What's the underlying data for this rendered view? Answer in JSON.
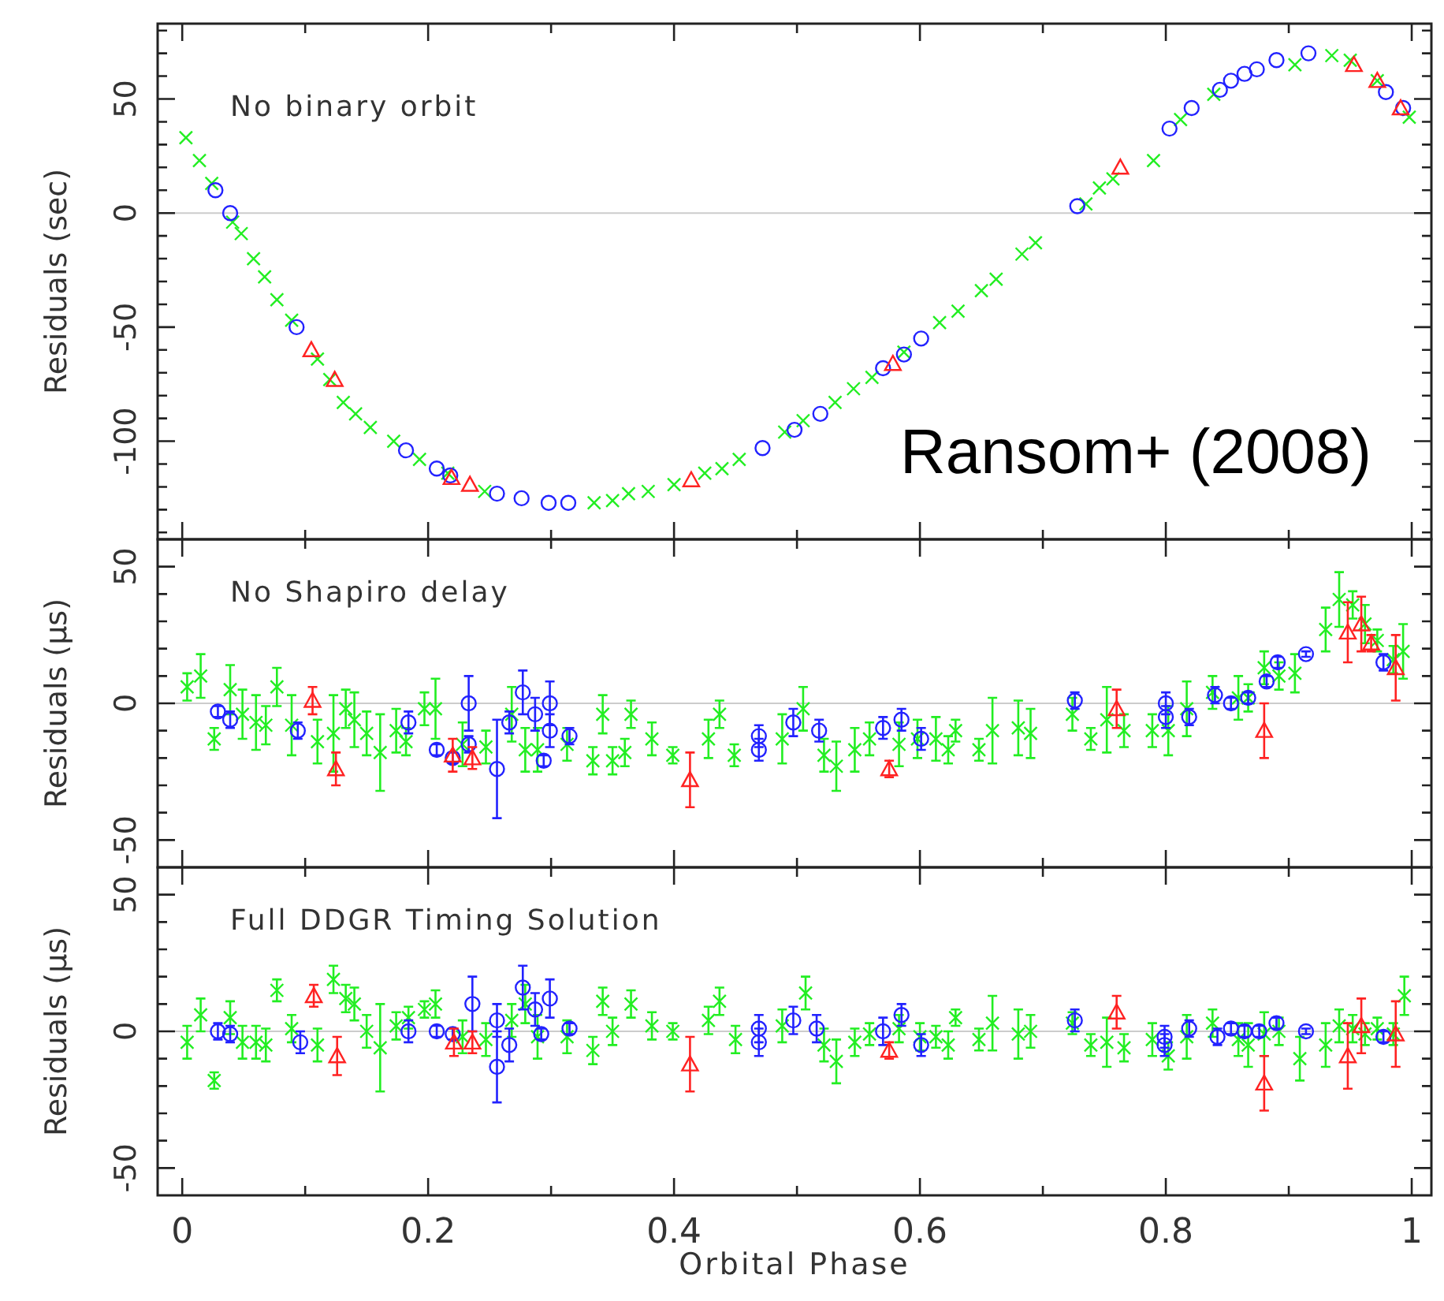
{
  "chart_data": [
    {
      "type": "scatter",
      "title": "No binary orbit",
      "ylabel": "Residuals (sec)",
      "annotations": [
        "Ransom+ (2008)"
      ],
      "tick_labels": "y",
      "xlim": [
        -0.02,
        1.016
      ],
      "ylim": [
        -143,
        83
      ],
      "xticks": [
        0,
        {
          "value": 0.1,
          "label": null
        },
        0.2,
        {
          "value": 0.3,
          "label": null
        },
        0.4,
        {
          "value": 0.5,
          "label": null
        },
        0.6,
        {
          "value": 0.7,
          "label": null
        },
        0.8,
        {
          "value": 0.9,
          "label": null
        },
        1
      ],
      "yticks": [
        {
          "value": -140,
          "label": null
        },
        {
          "value": -130,
          "label": null
        },
        {
          "value": -120,
          "label": null
        },
        {
          "value": -110,
          "label": null
        },
        -100,
        {
          "value": -90,
          "label": null
        },
        {
          "value": -80,
          "label": null
        },
        {
          "value": -70,
          "label": null
        },
        {
          "value": -60,
          "label": null
        },
        -50,
        {
          "value": -40,
          "label": null
        },
        {
          "value": -30,
          "label": null
        },
        {
          "value": -20,
          "label": null
        },
        {
          "value": -10,
          "label": null
        },
        0,
        {
          "value": 10,
          "label": null
        },
        {
          "value": 20,
          "label": null
        },
        {
          "value": 30,
          "label": null
        },
        {
          "value": 40,
          "label": null
        },
        50,
        {
          "value": 60,
          "label": null
        },
        {
          "value": 70,
          "label": null
        },
        {
          "value": 80,
          "label": null
        }
      ],
      "ref_lines": [
        {
          "axis": "y",
          "value": 0,
          "color": "#cccccc"
        }
      ],
      "series": [
        {
          "color": "#22ee22",
          "marker": "cross",
          "x": [
            0.003,
            0.014,
            0.024,
            0.041,
            0.048,
            0.058,
            0.067,
            0.077,
            0.089,
            0.11,
            0.12,
            0.131,
            0.141,
            0.153,
            0.172,
            0.193,
            0.216,
            0.246,
            0.335,
            0.35,
            0.363,
            0.379,
            0.4,
            0.425,
            0.439,
            0.453,
            0.49,
            0.505,
            0.531,
            0.546,
            0.561,
            0.587,
            0.616,
            0.631,
            0.65,
            0.662,
            0.683,
            0.694,
            0.735,
            0.746,
            0.757,
            0.79,
            0.812,
            0.839,
            0.905,
            0.935,
            0.95,
            0.972,
            0.998
          ],
          "values": [
            33,
            23,
            13,
            -4,
            -9,
            -20,
            -28,
            -38,
            -47,
            -64,
            -73,
            -83,
            -88,
            -94,
            -100,
            -108,
            -114,
            -122,
            -127,
            -126,
            -123,
            -122,
            -119,
            -114,
            -112,
            -108,
            -96,
            -91,
            -83,
            -77,
            -72,
            -61,
            -48,
            -43,
            -34,
            -29,
            -18,
            -13,
            4,
            11,
            15,
            23,
            41,
            52,
            65,
            69,
            67,
            58,
            42
          ]
        },
        {
          "color": "#2222ff",
          "marker": "circle",
          "x": [
            0.027,
            0.039,
            0.093,
            0.182,
            0.207,
            0.218,
            0.256,
            0.276,
            0.298,
            0.314,
            0.472,
            0.498,
            0.519,
            0.57,
            0.587,
            0.601,
            0.728,
            0.803,
            0.821,
            0.844,
            0.853,
            0.864,
            0.874,
            0.89,
            0.916,
            0.979,
            0.993
          ],
          "values": [
            10,
            0,
            -50,
            -104,
            -112,
            -115,
            -123,
            -125,
            -127,
            -127,
            -103,
            -95,
            -88,
            -68,
            -62,
            -55,
            3,
            37,
            46,
            54,
            58,
            61,
            63,
            67,
            70,
            53,
            46
          ]
        },
        {
          "color": "#ff2222",
          "marker": "triangle",
          "x": [
            0.105,
            0.124,
            0.219,
            0.234,
            0.414,
            0.578,
            0.763,
            0.953,
            0.972,
            0.991
          ],
          "values": [
            -60,
            -73,
            -116,
            -119,
            -117,
            -66,
            20,
            65,
            58,
            46
          ]
        }
      ]
    },
    {
      "type": "scatter",
      "title": "No Shapiro delay",
      "ylabel": "Residuals (μs)",
      "tick_labels": "y",
      "xlim": [
        -0.02,
        1.016
      ],
      "ylim": [
        -60,
        60
      ],
      "xticks": [
        0,
        {
          "value": 0.1,
          "label": null
        },
        0.2,
        {
          "value": 0.3,
          "label": null
        },
        0.4,
        {
          "value": 0.5,
          "label": null
        },
        0.6,
        {
          "value": 0.7,
          "label": null
        },
        0.8,
        {
          "value": 0.9,
          "label": null
        },
        1
      ],
      "yticks": [
        -50,
        {
          "value": -40,
          "label": null
        },
        {
          "value": -30,
          "label": null
        },
        {
          "value": -20,
          "label": null
        },
        {
          "value": -10,
          "label": null
        },
        0,
        {
          "value": 10,
          "label": null
        },
        {
          "value": 20,
          "label": null
        },
        {
          "value": 30,
          "label": null
        },
        {
          "value": 40,
          "label": null
        },
        50
      ],
      "ref_lines": [
        {
          "axis": "y",
          "value": 0,
          "color": "#cccccc"
        }
      ],
      "series": [
        {
          "color": "#22ee22",
          "marker": "cross",
          "x": [
            0.004,
            0.015,
            0.026,
            0.039,
            0.049,
            0.06,
            0.068,
            0.077,
            0.089,
            0.11,
            0.123,
            0.133,
            0.14,
            0.15,
            0.161,
            0.174,
            0.182,
            0.197,
            0.206,
            0.228,
            0.247,
            0.268,
            0.279,
            0.289,
            0.313,
            0.334,
            0.342,
            0.35,
            0.36,
            0.365,
            0.382,
            0.399,
            0.428,
            0.437,
            0.449,
            0.488,
            0.505,
            0.522,
            0.532,
            0.547,
            0.559,
            0.583,
            0.598,
            0.613,
            0.623,
            0.629,
            0.648,
            0.659,
            0.68,
            0.69,
            0.724,
            0.739,
            0.752,
            0.766,
            0.789,
            0.802,
            0.817,
            0.838,
            0.859,
            0.867,
            0.88,
            0.892,
            0.905,
            0.93,
            0.941,
            0.952,
            0.962,
            0.972,
            0.985,
            0.993
          ],
          "values": [
            6,
            10,
            -13,
            5,
            -4,
            -7,
            -8,
            6,
            -8,
            -14,
            -11,
            -2,
            -6,
            -11,
            -18,
            -10,
            -14,
            -2,
            -2,
            -15,
            -16,
            -4,
            -17,
            -17,
            -15,
            -21,
            -4,
            -21,
            -18,
            -4,
            -13,
            -19,
            -13,
            -4,
            -19,
            -13,
            -2,
            -19,
            -23,
            -17,
            -13,
            -15,
            -13,
            -13,
            -17,
            -10,
            -17,
            -10,
            -9,
            -11,
            -4,
            -13,
            -6,
            -10,
            -10,
            -10,
            -2,
            4,
            2,
            2,
            13,
            10,
            11,
            27,
            38,
            36,
            29,
            23,
            16,
            19
          ],
          "errors": [
            5,
            8,
            4,
            9,
            9,
            10,
            7,
            7,
            11,
            8,
            14,
            7,
            10,
            8,
            14,
            8,
            5,
            6,
            11,
            8,
            6,
            10,
            8,
            8,
            6,
            5,
            7,
            5,
            5,
            5,
            6,
            3,
            7,
            5,
            4,
            9,
            8,
            6,
            9,
            8,
            6,
            8,
            7,
            8,
            5,
            4,
            4,
            12,
            10,
            9,
            6,
            4,
            12,
            6,
            6,
            9,
            10,
            6,
            8,
            5,
            6,
            5,
            7,
            8,
            10,
            5,
            7,
            4,
            5,
            10
          ]
        },
        {
          "color": "#2222ff",
          "marker": "circle",
          "x": [
            0.029,
            0.039,
            0.094,
            0.184,
            0.207,
            0.22,
            0.233,
            0.233,
            0.256,
            0.266,
            0.277,
            0.287,
            0.294,
            0.299,
            0.299,
            0.315,
            0.469,
            0.469,
            0.497,
            0.518,
            0.57,
            0.585,
            0.601,
            0.726,
            0.8,
            0.8,
            0.819,
            0.84,
            0.853,
            0.867,
            0.882,
            0.891,
            0.914,
            0.977
          ],
          "values": [
            -3,
            -6,
            -10,
            -7,
            -17,
            -20,
            0,
            -15,
            -24,
            -7,
            4,
            -4,
            -21,
            0,
            -10,
            -12,
            -12,
            -17,
            -7,
            -10,
            -9,
            -6,
            -13,
            1,
            0,
            -5,
            -5,
            3,
            0,
            2,
            8,
            15,
            18,
            15
          ],
          "errors": [
            2,
            3,
            3,
            4,
            2,
            2,
            10,
            3,
            18,
            4,
            8,
            6,
            2,
            8,
            6,
            3,
            4,
            4,
            5,
            4,
            4,
            4,
            4,
            3,
            4,
            4,
            3,
            3,
            2,
            2,
            2,
            2,
            1,
            3
          ]
        },
        {
          "color": "#ff2222",
          "marker": "triangle",
          "x": [
            0.106,
            0.125,
            0.22,
            0.236,
            0.413,
            0.575,
            0.76,
            0.88,
            0.948,
            0.959,
            0.967,
            0.987
          ],
          "values": [
            1,
            -24,
            -19,
            -20,
            -28,
            -24,
            -2,
            -10,
            26,
            29,
            22,
            13
          ],
          "errors": [
            5,
            6,
            6,
            4,
            10,
            3,
            7,
            10,
            11,
            10,
            3,
            12
          ]
        }
      ]
    },
    {
      "type": "scatter",
      "title": "Full DDGR Timing Solution",
      "ylabel": "Residuals (μs)",
      "xlabel": "Orbital Phase",
      "xlim": [
        -0.02,
        1.016
      ],
      "ylim": [
        -60,
        60
      ],
      "xticks": [
        0,
        {
          "value": 0.1,
          "label": null
        },
        0.2,
        {
          "value": 0.3,
          "label": null
        },
        0.4,
        {
          "value": 0.5,
          "label": null
        },
        0.6,
        {
          "value": 0.7,
          "label": null
        },
        0.8,
        {
          "value": 0.9,
          "label": null
        },
        1
      ],
      "yticks": [
        -50,
        {
          "value": -40,
          "label": null
        },
        {
          "value": -30,
          "label": null
        },
        {
          "value": -20,
          "label": null
        },
        {
          "value": -10,
          "label": null
        },
        0,
        {
          "value": 10,
          "label": null
        },
        {
          "value": 20,
          "label": null
        },
        {
          "value": 30,
          "label": null
        },
        {
          "value": 40,
          "label": null
        },
        50
      ],
      "ref_lines": [
        {
          "axis": "y",
          "value": 0,
          "color": "#cccccc"
        }
      ],
      "series": [
        {
          "color": "#22ee22",
          "marker": "cross",
          "x": [
            0.004,
            0.015,
            0.026,
            0.039,
            0.049,
            0.06,
            0.068,
            0.077,
            0.089,
            0.11,
            0.123,
            0.133,
            0.14,
            0.15,
            0.161,
            0.174,
            0.184,
            0.197,
            0.206,
            0.228,
            0.247,
            0.268,
            0.279,
            0.289,
            0.313,
            0.334,
            0.342,
            0.35,
            0.365,
            0.382,
            0.399,
            0.428,
            0.437,
            0.45,
            0.488,
            0.507,
            0.522,
            0.532,
            0.547,
            0.559,
            0.583,
            0.6,
            0.613,
            0.623,
            0.629,
            0.648,
            0.659,
            0.68,
            0.69,
            0.724,
            0.739,
            0.752,
            0.766,
            0.789,
            0.802,
            0.817,
            0.838,
            0.859,
            0.867,
            0.88,
            0.892,
            0.909,
            0.93,
            0.941,
            0.952,
            0.962,
            0.972,
            0.985,
            0.994
          ],
          "values": [
            -4,
            6,
            -18,
            5,
            -4,
            -4,
            -5,
            15,
            1,
            -5,
            19,
            12,
            10,
            0,
            -6,
            2,
            5,
            8,
            10,
            -2,
            -3,
            4,
            10,
            -2,
            -2,
            -7,
            11,
            0,
            10,
            2,
            0,
            4,
            11,
            -3,
            2,
            14,
            -5,
            -11,
            -4,
            -1,
            1,
            -2,
            -2,
            -5,
            5,
            -3,
            3,
            -1,
            0,
            3,
            -5,
            -4,
            -6,
            -3,
            -9,
            -2,
            3,
            -3,
            -5,
            -1,
            0,
            -10,
            -5,
            2,
            1,
            -1,
            1,
            -1,
            13
          ],
          "errors": [
            6,
            6,
            3,
            6,
            6,
            6,
            6,
            4,
            5,
            6,
            5,
            5,
            6,
            6,
            16,
            5,
            4,
            3,
            5,
            6,
            6,
            6,
            7,
            8,
            6,
            5,
            5,
            5,
            5,
            5,
            3,
            5,
            5,
            5,
            6,
            6,
            6,
            8,
            5,
            4,
            5,
            5,
            4,
            5,
            3,
            4,
            10,
            9,
            6,
            4,
            4,
            9,
            5,
            6,
            5,
            8,
            5,
            6,
            8,
            8,
            5,
            8,
            8,
            6,
            5,
            4,
            4,
            4,
            7
          ]
        },
        {
          "color": "#2222ff",
          "marker": "circle",
          "x": [
            0.029,
            0.039,
            0.096,
            0.184,
            0.207,
            0.22,
            0.236,
            0.256,
            0.256,
            0.266,
            0.277,
            0.287,
            0.292,
            0.299,
            0.315,
            0.469,
            0.469,
            0.497,
            0.516,
            0.57,
            0.585,
            0.601,
            0.726,
            0.799,
            0.799,
            0.819,
            0.842,
            0.853,
            0.864,
            0.876,
            0.89,
            0.914,
            0.977
          ],
          "values": [
            0,
            -1,
            -4,
            0,
            0,
            -1,
            10,
            -13,
            4,
            -5,
            16,
            8,
            -1,
            12,
            1,
            1,
            -4,
            4,
            1,
            0,
            6,
            -5,
            4,
            -2,
            -5,
            1,
            -2,
            1,
            0,
            0,
            3,
            0,
            -2
          ],
          "errors": [
            3,
            3,
            4,
            4,
            2,
            2,
            10,
            13,
            6,
            6,
            8,
            6,
            2,
            7,
            2,
            5,
            5,
            5,
            5,
            5,
            4,
            4,
            4,
            4,
            4,
            3,
            3,
            2,
            2,
            2,
            2,
            1,
            2
          ]
        },
        {
          "color": "#ff2222",
          "marker": "triangle",
          "x": [
            0.107,
            0.126,
            0.221,
            0.236,
            0.413,
            0.575,
            0.76,
            0.88,
            0.948,
            0.959,
            0.987
          ],
          "values": [
            13,
            -9,
            -4,
            -4,
            -12,
            -7,
            7,
            -19,
            -9,
            2,
            -1
          ],
          "errors": [
            4,
            7,
            5,
            4,
            10,
            3,
            6,
            10,
            12,
            10,
            12
          ]
        }
      ]
    }
  ]
}
